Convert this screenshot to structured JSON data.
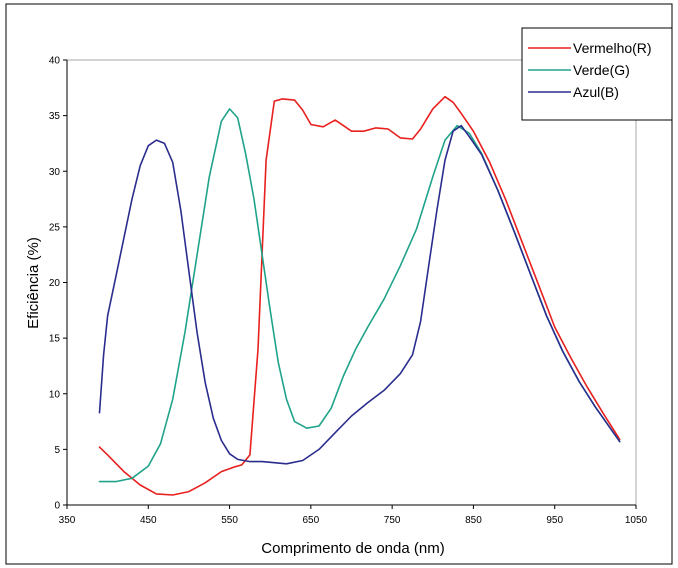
{
  "chart_data": {
    "type": "line",
    "xlabel": "Comprimento de onda (nm)",
    "ylabel": "Eficiência (%)",
    "xlim": [
      350,
      1050
    ],
    "ylim": [
      0,
      40
    ],
    "xticks": [
      350,
      450,
      550,
      650,
      750,
      850,
      950,
      1050
    ],
    "yticks": [
      0,
      5,
      10,
      15,
      20,
      25,
      30,
      35,
      40
    ],
    "grid": false,
    "legend_position": "top-right",
    "series": [
      {
        "name": "Vermelho(R)",
        "color": "#e8201e",
        "x": [
          390,
          400,
          420,
          440,
          460,
          480,
          500,
          520,
          540,
          555,
          565,
          575,
          585,
          595,
          605,
          615,
          630,
          640,
          650,
          665,
          680,
          690,
          700,
          715,
          730,
          745,
          760,
          775,
          785,
          800,
          815,
          825,
          835,
          850,
          870,
          890,
          910,
          930,
          950,
          970,
          990,
          1010,
          1030
        ],
        "y": [
          5.2,
          4.5,
          3.0,
          1.8,
          1.0,
          0.9,
          1.2,
          2.0,
          3.0,
          3.4,
          3.6,
          4.5,
          14.0,
          31.0,
          36.3,
          36.5,
          36.4,
          35.5,
          34.2,
          34.0,
          34.6,
          34.1,
          33.6,
          33.6,
          33.9,
          33.8,
          33.0,
          32.9,
          33.8,
          35.6,
          36.7,
          36.2,
          35.2,
          33.6,
          30.8,
          27.4,
          23.6,
          19.8,
          16.0,
          13.2,
          10.6,
          8.2,
          5.9
        ]
      },
      {
        "name": "Verde(G)",
        "color": "#20a38a",
        "x": [
          390,
          410,
          430,
          450,
          465,
          480,
          495,
          510,
          525,
          540,
          550,
          560,
          570,
          580,
          590,
          600,
          610,
          620,
          630,
          645,
          660,
          675,
          690,
          705,
          720,
          740,
          760,
          780,
          800,
          815,
          830,
          845,
          860,
          880,
          900,
          920,
          940,
          960,
          980,
          1000,
          1030
        ],
        "y": [
          2.1,
          2.1,
          2.4,
          3.5,
          5.5,
          9.5,
          15.5,
          22.5,
          29.5,
          34.5,
          35.6,
          34.8,
          31.5,
          27.5,
          22.5,
          17.5,
          12.8,
          9.5,
          7.5,
          6.9,
          7.1,
          8.7,
          11.6,
          14.0,
          16.0,
          18.5,
          21.5,
          24.8,
          29.5,
          32.8,
          34.1,
          33.4,
          31.6,
          28.3,
          24.6,
          20.8,
          17.0,
          13.8,
          11.1,
          8.8,
          5.7
        ]
      },
      {
        "name": "Azul(B)",
        "color": "#2b2d8e",
        "x": [
          390,
          395,
          400,
          410,
          420,
          430,
          440,
          450,
          460,
          470,
          480,
          490,
          500,
          510,
          520,
          530,
          540,
          550,
          560,
          575,
          590,
          605,
          620,
          640,
          660,
          680,
          700,
          720,
          740,
          760,
          775,
          785,
          795,
          805,
          815,
          825,
          835,
          845,
          860,
          880,
          900,
          920,
          940,
          960,
          980,
          1000,
          1030
        ],
        "y": [
          8.3,
          13.5,
          17.0,
          20.5,
          24.0,
          27.5,
          30.5,
          32.3,
          32.8,
          32.5,
          30.8,
          26.5,
          21.0,
          15.5,
          11.0,
          7.8,
          5.8,
          4.6,
          4.1,
          3.9,
          3.9,
          3.8,
          3.7,
          4.0,
          5.0,
          6.5,
          8.0,
          9.2,
          10.3,
          11.8,
          13.5,
          16.5,
          21.5,
          26.5,
          31.0,
          33.6,
          34.1,
          33.1,
          31.5,
          28.3,
          24.6,
          20.8,
          17.0,
          13.8,
          11.1,
          8.8,
          5.7
        ]
      }
    ]
  }
}
